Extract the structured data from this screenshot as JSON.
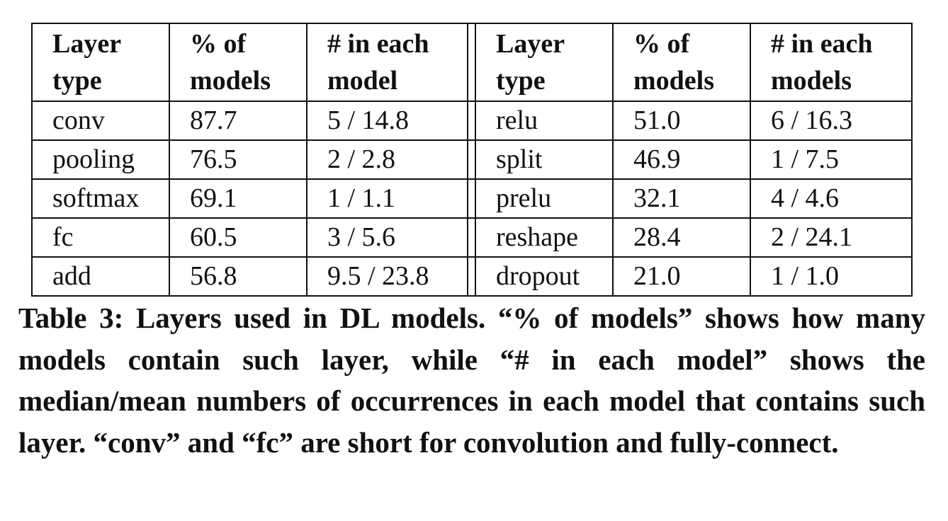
{
  "table": {
    "headers": [
      [
        "Layer",
        "type"
      ],
      [
        "% of",
        "models"
      ],
      [
        "# in each",
        "model"
      ],
      [
        "Layer",
        "type"
      ],
      [
        "% of",
        "models"
      ],
      [
        "# in each",
        "models"
      ]
    ],
    "rows": [
      [
        "conv",
        "87.7",
        "5 / 14.8",
        "relu",
        "51.0",
        "6 / 16.3"
      ],
      [
        "pooling",
        "76.5",
        "2 / 2.8",
        "split",
        "46.9",
        "1 / 7.5"
      ],
      [
        "softmax",
        "69.1",
        "1 / 1.1",
        "prelu",
        "32.1",
        "4 / 4.6"
      ],
      [
        "fc",
        "60.5",
        "3 / 5.6",
        "reshape",
        "28.4",
        "2 / 24.1"
      ],
      [
        "add",
        "56.8",
        "9.5 / 23.8",
        "dropout",
        "21.0",
        "1 / 1.0"
      ]
    ]
  },
  "caption": "Table 3: Layers used in DL models. “% of models” shows how many models contain such layer, while “# in each model” shows the median/mean numbers of occurrences in each model that contains such layer. “conv” and “fc” are short for convolution and fully-connect."
}
